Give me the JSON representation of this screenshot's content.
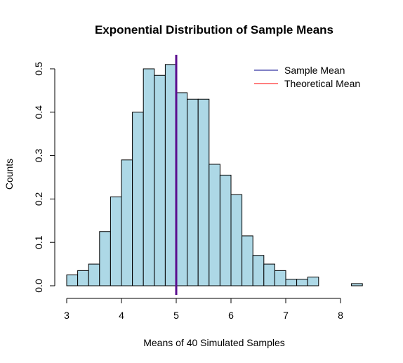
{
  "chart_data": {
    "type": "bar",
    "title": "Exponential Distribution of Sample Means",
    "xlabel": "Means of 40 Simulated Samples",
    "ylabel": "Counts",
    "xlim": [
      3,
      8.4
    ],
    "ylim": [
      0,
      0.5
    ],
    "bin_width": 0.2,
    "x_ticks": [
      3,
      4,
      5,
      6,
      7,
      8
    ],
    "y_ticks": [
      0.0,
      0.1,
      0.2,
      0.3,
      0.4,
      0.5
    ],
    "y_tick_labels": [
      "0.0",
      "0.1",
      "0.2",
      "0.3",
      "0.4",
      "0.5"
    ],
    "bins": [
      {
        "start": 3.0,
        "end": 3.2,
        "value": 0.025
      },
      {
        "start": 3.2,
        "end": 3.4,
        "value": 0.035
      },
      {
        "start": 3.4,
        "end": 3.6,
        "value": 0.05
      },
      {
        "start": 3.6,
        "end": 3.8,
        "value": 0.125
      },
      {
        "start": 3.8,
        "end": 4.0,
        "value": 0.205
      },
      {
        "start": 4.0,
        "end": 4.2,
        "value": 0.29
      },
      {
        "start": 4.2,
        "end": 4.4,
        "value": 0.4
      },
      {
        "start": 4.4,
        "end": 4.6,
        "value": 0.5
      },
      {
        "start": 4.6,
        "end": 4.8,
        "value": 0.485
      },
      {
        "start": 4.8,
        "end": 5.0,
        "value": 0.51
      },
      {
        "start": 5.0,
        "end": 5.2,
        "value": 0.445
      },
      {
        "start": 5.2,
        "end": 5.4,
        "value": 0.43
      },
      {
        "start": 5.4,
        "end": 5.6,
        "value": 0.43
      },
      {
        "start": 5.6,
        "end": 5.8,
        "value": 0.28
      },
      {
        "start": 5.8,
        "end": 6.0,
        "value": 0.255
      },
      {
        "start": 6.0,
        "end": 6.2,
        "value": 0.21
      },
      {
        "start": 6.2,
        "end": 6.4,
        "value": 0.115
      },
      {
        "start": 6.4,
        "end": 6.6,
        "value": 0.07
      },
      {
        "start": 6.6,
        "end": 6.8,
        "value": 0.05
      },
      {
        "start": 6.8,
        "end": 7.0,
        "value": 0.035
      },
      {
        "start": 7.0,
        "end": 7.2,
        "value": 0.015
      },
      {
        "start": 7.2,
        "end": 7.4,
        "value": 0.015
      },
      {
        "start": 7.4,
        "end": 7.6,
        "value": 0.02
      },
      {
        "start": 7.6,
        "end": 7.8,
        "value": 0.0
      },
      {
        "start": 7.8,
        "end": 8.0,
        "value": 0.0
      },
      {
        "start": 8.0,
        "end": 8.2,
        "value": 0.0
      },
      {
        "start": 8.2,
        "end": 8.4,
        "value": 0.005
      }
    ],
    "bar_color": "#add8e6",
    "vlines": [
      {
        "name": "Sample Mean",
        "x": 5.0,
        "color": "#00008b"
      },
      {
        "name": "Theoretical Mean",
        "x": 5.0,
        "color": "#ff0000"
      }
    ],
    "overlap_line_color": "#5b0e8f",
    "legend": {
      "position": "top-right",
      "items": [
        {
          "label": "Sample Mean",
          "color": "#00008b"
        },
        {
          "label": "Theoretical Mean",
          "color": "#ff0000"
        }
      ]
    },
    "grid": false
  }
}
